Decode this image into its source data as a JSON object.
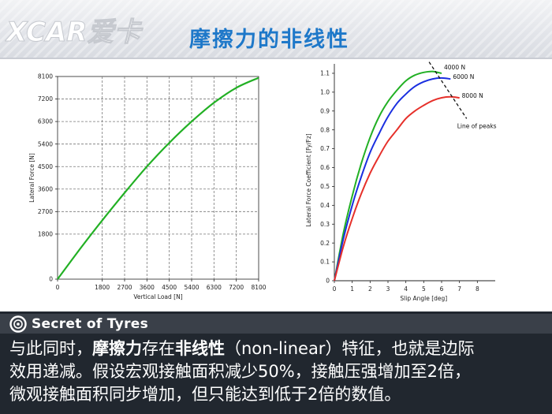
{
  "header": {
    "logo_text": "XCAR爱卡",
    "title": "摩擦力的非线性"
  },
  "brand": {
    "label": "Secret of Tyres"
  },
  "caption": {
    "line1_a": "与此同时，",
    "line1_b": "摩擦力",
    "line1_c": "存在",
    "line1_d": "非线性",
    "line1_e": "（non-linear）特征，也就是边际",
    "line2": "效用递减。假设宏观接触面积减少50%，接触压强增加至2倍，",
    "line3": "微观接触面积同步增加，但只能达到低于2倍的数值。"
  },
  "colors": {
    "accent": "#1e78c9",
    "green": "#22b024",
    "blue": "#1a2fe0",
    "red": "#e6302a"
  },
  "chart_data": [
    {
      "type": "line",
      "xlabel": "Vertical Load [N]",
      "ylabel": "Lateral Force [N]",
      "xlim": [
        0,
        8100
      ],
      "ylim": [
        0,
        8100
      ],
      "xticks": [
        0,
        1800,
        2700,
        3600,
        4500,
        5400,
        6300,
        7200,
        8100
      ],
      "yticks": [
        0,
        1800,
        2700,
        3600,
        4500,
        5400,
        6300,
        7200,
        8100
      ],
      "xtick_labels": [
        "0",
        "1800",
        "2700",
        "3600",
        "4500",
        "5400",
        "6300",
        "7200",
        "8100"
      ],
      "ytick_labels": [
        "0",
        "1800",
        "2700",
        "3600",
        "4500",
        "5400",
        "6300",
        "7200",
        "8100"
      ],
      "grid": true,
      "series": [
        {
          "color": "#22b024",
          "x": [
            0,
            900,
            1800,
            2700,
            3600,
            4500,
            5400,
            6300,
            7200,
            8100
          ],
          "y": [
            0,
            1200,
            2350,
            3450,
            4500,
            5450,
            6300,
            7050,
            7650,
            8050
          ]
        }
      ]
    },
    {
      "type": "line",
      "xlabel": "Slip Angle [deg]",
      "ylabel": "Lateral Force Coefficient [Fy/Fz]",
      "xlim": [
        0,
        9
      ],
      "ylim": [
        0,
        1.15
      ],
      "xticks": [
        0,
        1,
        2,
        3,
        4,
        5,
        6,
        7,
        8
      ],
      "yticks": [
        0,
        0.1,
        0.2,
        0.3,
        0.4,
        0.5,
        0.6,
        0.7,
        0.8,
        0.9,
        1.0,
        1.1
      ],
      "xtick_labels": [
        "0",
        "1",
        "2",
        "3",
        "4",
        "5",
        "6",
        "7",
        "8"
      ],
      "ytick_labels": [
        "0",
        "0.1",
        "0.2",
        "0.3",
        "0.4",
        "0.5",
        "0.6",
        "0.7",
        "0.8",
        "0.9",
        "1.0",
        "1.1"
      ],
      "grid": false,
      "series": [
        {
          "name": "4000 N",
          "color": "#22b024",
          "x": [
            0,
            0.5,
            1,
            1.5,
            2,
            2.5,
            3,
            3.5,
            4,
            4.5,
            5,
            5.5,
            6
          ],
          "y": [
            0,
            0.25,
            0.45,
            0.62,
            0.76,
            0.87,
            0.95,
            1.01,
            1.06,
            1.09,
            1.105,
            1.11,
            1.1
          ]
        },
        {
          "name": "6000 N",
          "color": "#1a2fe0",
          "x": [
            0,
            0.5,
            1,
            1.5,
            2,
            2.5,
            3,
            3.5,
            4,
            4.5,
            5,
            5.5,
            6,
            6.5
          ],
          "y": [
            0,
            0.22,
            0.4,
            0.55,
            0.68,
            0.78,
            0.87,
            0.94,
            0.99,
            1.03,
            1.055,
            1.07,
            1.075,
            1.07
          ]
        },
        {
          "name": "8000 N",
          "color": "#e6302a",
          "x": [
            0,
            0.5,
            1,
            1.5,
            2,
            2.5,
            3,
            3.5,
            4,
            4.5,
            5,
            5.5,
            6,
            6.5,
            7
          ],
          "y": [
            0,
            0.18,
            0.33,
            0.46,
            0.57,
            0.66,
            0.74,
            0.8,
            0.86,
            0.9,
            0.93,
            0.955,
            0.97,
            0.975,
            0.97
          ]
        }
      ],
      "annotation": {
        "label": "Line of peaks",
        "x": [
          5.3,
          7.4
        ],
        "y": [
          1.16,
          0.86
        ]
      }
    }
  ]
}
